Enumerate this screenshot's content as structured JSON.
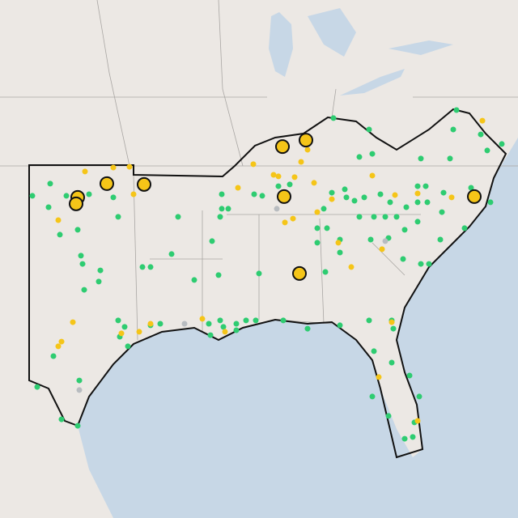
{
  "chart_data": {
    "type": "scatter",
    "xlim": [
      -104,
      -72
    ],
    "ylim": [
      25,
      45
    ],
    "series": [
      {
        "color": "#2ecc71",
        "x": [
          -100.9,
          -102,
          -99.9,
          -101,
          -98.5,
          -97,
          -96.7,
          -93,
          -99.2,
          -100.3,
          -99,
          -98.9,
          -97.8,
          -98.8,
          -97.9,
          -95.2,
          -94.7,
          -93.4,
          -96.7,
          -96.3,
          -96.6,
          -96.1,
          -99.1,
          -101.7,
          -100.2,
          -99.2,
          -100.7,
          -94.7,
          -94.1,
          -90.3,
          -89.9,
          -90.4,
          -90.9,
          -90.5,
          -92,
          -91.1,
          -90.4,
          -90.2,
          -89.4,
          -88.8,
          -88.2,
          -86.5,
          -85,
          -91,
          -89.4,
          -88,
          -86.1,
          -86.8,
          -87.8,
          -88.3,
          -90.3,
          -83.4,
          -81.2,
          -81.8,
          -81,
          -78,
          -83.5,
          -82.7,
          -82.6,
          -82.1,
          -81.5,
          -80.5,
          -81.8,
          -80.9,
          -80.2,
          -79.5,
          -78.9,
          -78.2,
          -77.7,
          -77.6,
          -76.6,
          -74.9,
          -78.2,
          -78.2,
          -79.9,
          -75.8,
          -76,
          -76.2,
          -74.3,
          -73.9,
          -73,
          -73.7,
          -75.3,
          -76.7,
          -76.8,
          -77.5,
          -78,
          -79.1,
          -79,
          -80,
          -81.1,
          -84,
          -83.8,
          -84.4,
          -83,
          -83.9,
          -83,
          -84.4,
          -79.8,
          -79.7,
          -81.2,
          -80.9,
          -79.8,
          -78.7,
          -78.1,
          -81,
          -80,
          -78.5,
          -79,
          -78.4,
          -83
        ],
        "values": [
          37.91,
          37.44,
          37.44,
          37,
          37.5,
          37.38,
          36.63,
          36.63,
          36.13,
          35.94,
          35.13,
          34.81,
          34.56,
          33.81,
          34.13,
          34.69,
          34.69,
          35.19,
          32.63,
          32.38,
          32,
          31.63,
          30.31,
          30.06,
          28.81,
          28.56,
          31.25,
          32.44,
          32.5,
          36.94,
          36.94,
          36.63,
          35.69,
          34.38,
          34.19,
          32.5,
          32.63,
          32.38,
          32.5,
          32.63,
          32.63,
          32.63,
          32.31,
          32.06,
          32.25,
          34.44,
          37.88,
          37.81,
          37.44,
          37.5,
          37.5,
          40.44,
          40,
          38.94,
          39.06,
          38.88,
          37.56,
          37.69,
          37.38,
          37.25,
          37.38,
          37.5,
          36.63,
          36.63,
          36.63,
          36.63,
          37,
          37.81,
          37.81,
          37.19,
          37.56,
          37.75,
          36.44,
          37.19,
          37.19,
          40.75,
          40,
          38.88,
          39.81,
          39.19,
          39.44,
          37.19,
          36.19,
          36.81,
          35.75,
          34.81,
          34.81,
          35,
          36.13,
          35.81,
          35.75,
          36.94,
          36.19,
          35.63,
          35.75,
          34.5,
          35.25,
          36.19,
          32.63,
          32.31,
          32.63,
          31.44,
          31,
          30.5,
          29.69,
          29.69,
          28.94,
          28.13,
          28.06,
          28.69,
          32.44
        ]
      },
      {
        "color": "#f5c518",
        "x": [
          -98.75,
          -97,
          -96,
          -100.4,
          -95.75,
          -88.35,
          -89.3,
          -86.8,
          -85.4,
          -85,
          -85.8,
          -84.6,
          -86.4,
          -85.9,
          -84.4,
          -83.5,
          -81,
          -79.6,
          -78.2,
          -76.1,
          -74.2,
          -83.1,
          -82.3,
          -80.4,
          -99.5,
          -100.4,
          -100.2,
          -96.5,
          -95.4,
          -94.7,
          -91.5,
          -90.1,
          -87.1,
          -79.8,
          -80.6,
          -78.2
        ],
        "values": [
          38.38,
          38.53,
          38.56,
          36.5,
          37.5,
          38.66,
          37.75,
          38.19,
          38.75,
          39.22,
          38.16,
          37.94,
          36.41,
          36.56,
          36.81,
          37.31,
          38.22,
          37.47,
          37.53,
          37.38,
          40.34,
          35.63,
          34.69,
          35.38,
          32.56,
          31.63,
          31.81,
          32.13,
          32.19,
          32.5,
          32.69,
          32.19,
          38.25,
          32.56,
          30.44,
          28.75
        ]
      },
      {
        "color": "#b8bcc0",
        "x": [
          -86.9,
          -80.2,
          -92.6,
          -99.1
        ],
        "values": [
          36.94,
          35.69,
          32.5,
          29.94
        ]
      },
      {
        "color": "#f5c518",
        "x": [
          -99.2,
          -99.3,
          -97.4,
          -95.1,
          -86.55,
          -85.1,
          -86.45,
          -85.5,
          -74.7
        ],
        "values": [
          37.38,
          37.13,
          37.91,
          37.88,
          39.34,
          39.59,
          37.41,
          34.44,
          37.41
        ]
      }
    ]
  }
}
